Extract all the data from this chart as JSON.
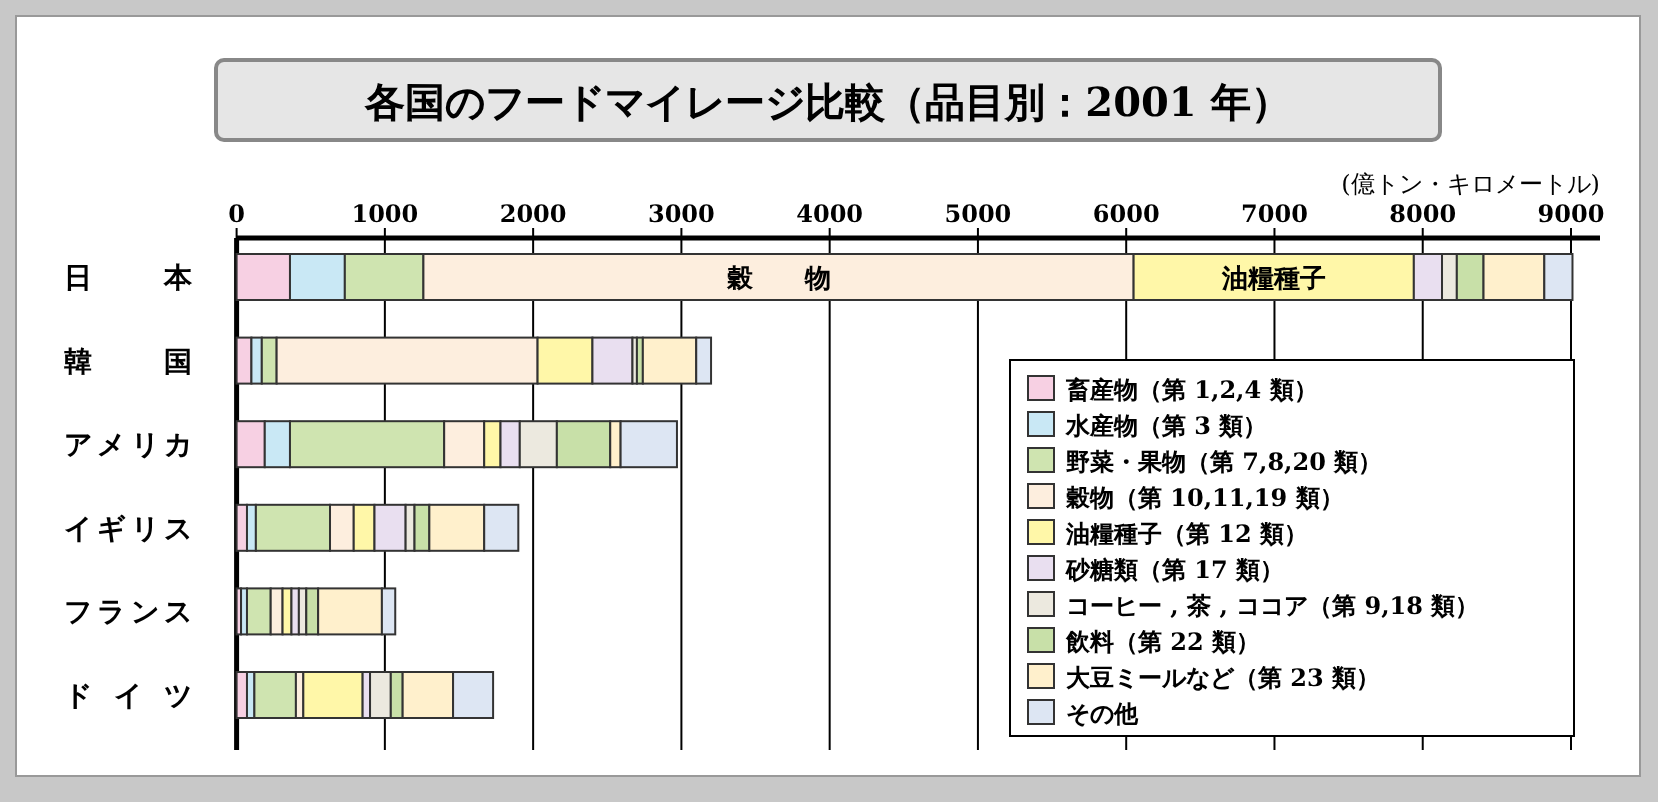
{
  "chart_data": {
    "type": "bar",
    "orientation": "horizontal",
    "stacked": true,
    "title": "各国のフードマイレージ比較（品目別：2001 年）",
    "xlabel": "(億トン・キロメートル)",
    "categories": [
      "日本",
      "韓国",
      "アメリカ",
      "イギリス",
      "フランス",
      "ドイツ"
    ],
    "series": [
      {
        "name": "畜産物（第 1,2,4 類）",
        "color": "#f7d0e3",
        "values": [
          360,
          100,
          190,
          70,
          30,
          70
        ]
      },
      {
        "name": "水産物（第 3 類）",
        "color": "#c9e8f5",
        "values": [
          370,
          70,
          170,
          60,
          40,
          50
        ]
      },
      {
        "name": "野菜・果物（第 7,8,20 類）",
        "color": "#cfe4b0",
        "values": [
          530,
          100,
          1040,
          500,
          160,
          280
        ]
      },
      {
        "name": "穀物（第 10,11,19 類）",
        "color": "#fdeede",
        "values": [
          4790,
          1760,
          270,
          160,
          80,
          50
        ]
      },
      {
        "name": "油糧種子（第 12 類）",
        "color": "#fff7a8",
        "values": [
          1890,
          370,
          110,
          140,
          60,
          400
        ]
      },
      {
        "name": "砂糖類（第 17 類）",
        "color": "#e9dff0",
        "values": [
          190,
          270,
          130,
          210,
          50,
          50
        ]
      },
      {
        "name": "コーヒー , 茶 , ココア（第 9,18 類）",
        "color": "#ece9df",
        "values": [
          100,
          30,
          250,
          60,
          50,
          140
        ]
      },
      {
        "name": "飲料（第 22 類）",
        "color": "#c8e0a8",
        "values": [
          180,
          40,
          360,
          100,
          80,
          80
        ]
      },
      {
        "name": "大豆ミールなど（第 23 類）",
        "color": "#fff0cc",
        "values": [
          410,
          360,
          70,
          370,
          430,
          340
        ]
      },
      {
        "name": "その他",
        "color": "#dde6f3",
        "values": [
          190,
          100,
          380,
          230,
          90,
          270
        ]
      }
    ],
    "annotations": [
      "穀　　物",
      "油糧種子"
    ],
    "xlim": [
      0,
      9000
    ],
    "xticks": [
      0,
      1000,
      2000,
      3000,
      4000,
      5000,
      6000,
      7000,
      8000,
      9000
    ],
    "grid": "x",
    "legend": "bottom right"
  }
}
